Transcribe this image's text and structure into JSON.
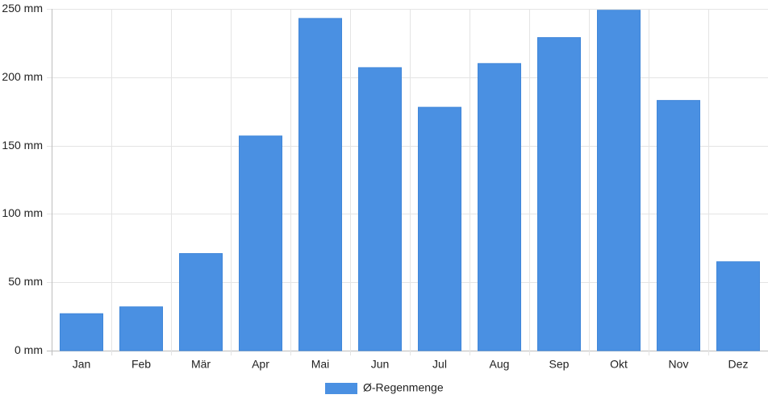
{
  "chart_data": {
    "type": "bar",
    "title": "",
    "xlabel": "",
    "ylabel": "",
    "categories": [
      "Jan",
      "Feb",
      "Mär",
      "Apr",
      "Mai",
      "Jun",
      "Jul",
      "Aug",
      "Sep",
      "Okt",
      "Nov",
      "Dez"
    ],
    "series": [
      {
        "name": "Ø-Regenmenge",
        "values": [
          27,
          32,
          71,
          157,
          243,
          207,
          178,
          210,
          229,
          249,
          183,
          65
        ],
        "color": "#4a90e2"
      }
    ],
    "ylim": [
      0,
      250
    ],
    "y_ticks": [
      0,
      50,
      100,
      150,
      200,
      250
    ],
    "y_tick_labels": [
      "0 mm",
      "50 mm",
      "100 mm",
      "150 mm",
      "200 mm",
      "250 mm"
    ],
    "grid": true,
    "legend_position": "bottom-center"
  }
}
